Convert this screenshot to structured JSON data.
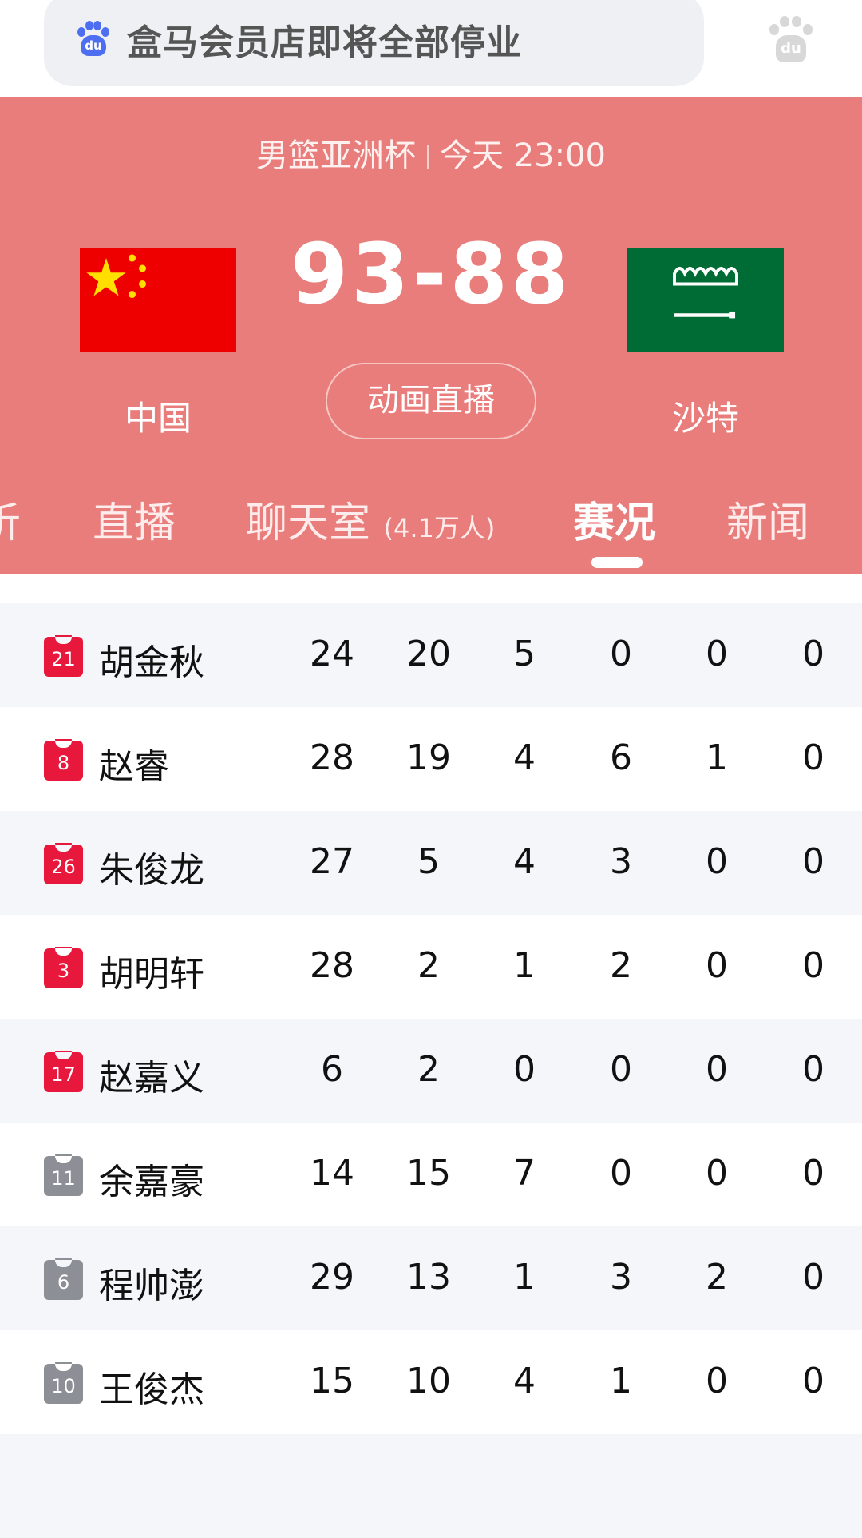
{
  "search": {
    "query": "盒马会员店即将全部停业",
    "logo_label": "du"
  },
  "match": {
    "league": "男篮亚洲杯",
    "time": "今天 23:00",
    "score": "93-88",
    "home_team": "中国",
    "away_team": "沙特",
    "live_button": "动画直播"
  },
  "tabs": [
    {
      "label": "析"
    },
    {
      "label": "直播"
    },
    {
      "label": "聊天室",
      "count": "(4.1万人)"
    },
    {
      "label": "赛况",
      "active": true
    },
    {
      "label": "新闻"
    }
  ],
  "colors": {
    "header": "#e87d7b",
    "starter_jersey": "#e8173c",
    "bench_jersey": "#8c8f96"
  },
  "players": [
    {
      "number": "21",
      "name": "胡金秋",
      "starter": true,
      "stats": [
        "24",
        "20",
        "5",
        "0",
        "0",
        "0"
      ]
    },
    {
      "number": "8",
      "name": "赵睿",
      "starter": true,
      "stats": [
        "28",
        "19",
        "4",
        "6",
        "1",
        "0"
      ]
    },
    {
      "number": "26",
      "name": "朱俊龙",
      "starter": true,
      "stats": [
        "27",
        "5",
        "4",
        "3",
        "0",
        "0"
      ]
    },
    {
      "number": "3",
      "name": "胡明轩",
      "starter": true,
      "stats": [
        "28",
        "2",
        "1",
        "2",
        "0",
        "0"
      ]
    },
    {
      "number": "17",
      "name": "赵嘉义",
      "starter": true,
      "stats": [
        "6",
        "2",
        "0",
        "0",
        "0",
        "0"
      ]
    },
    {
      "number": "11",
      "name": "余嘉豪",
      "starter": false,
      "stats": [
        "14",
        "15",
        "7",
        "0",
        "0",
        "0"
      ]
    },
    {
      "number": "6",
      "name": "程帅澎",
      "starter": false,
      "stats": [
        "29",
        "13",
        "1",
        "3",
        "2",
        "0"
      ]
    },
    {
      "number": "10",
      "name": "王俊杰",
      "starter": false,
      "stats": [
        "15",
        "10",
        "4",
        "1",
        "0",
        "0"
      ]
    }
  ]
}
